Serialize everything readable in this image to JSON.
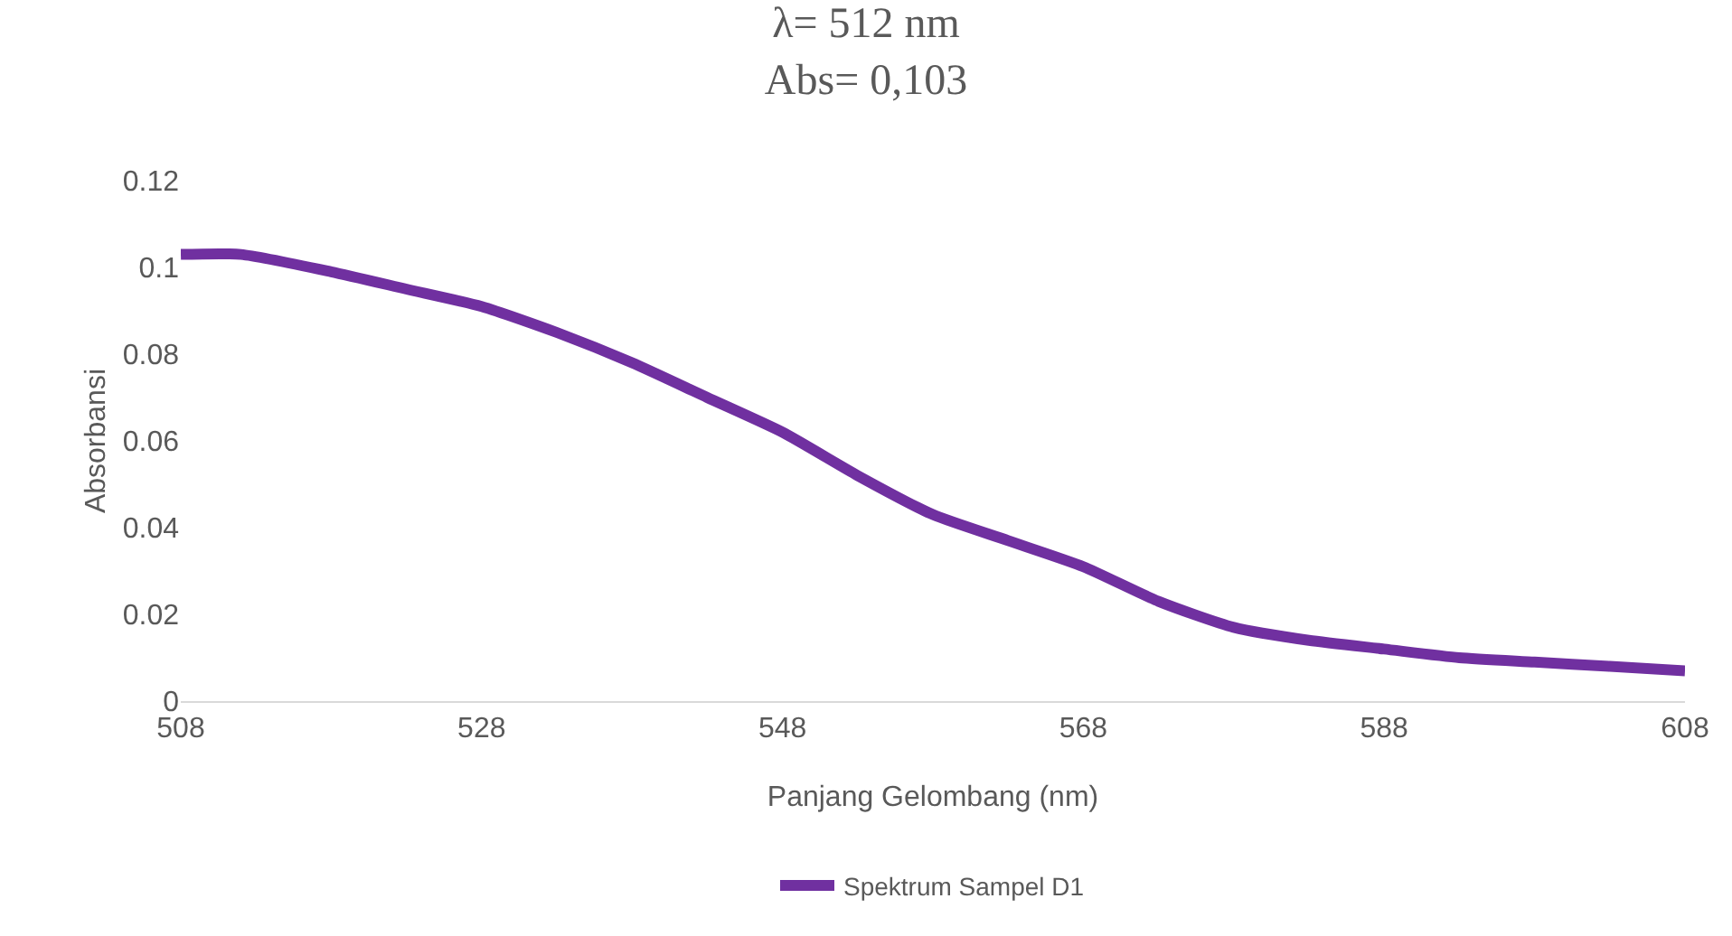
{
  "chart_data": {
    "type": "line",
    "title": "λ= 512 nm\nAbs= 0,103",
    "xlabel": "Panjang Gelombang (nm)",
    "ylabel": "Absorbansi",
    "x": [
      508,
      512,
      518,
      523,
      528,
      533,
      538,
      543,
      548,
      553,
      558,
      563,
      568,
      573,
      578,
      583,
      588,
      593,
      598,
      603,
      608
    ],
    "series": [
      {
        "name": "Spektrum Sampel D1",
        "color": "#7030a0",
        "values": [
          0.103,
          0.103,
          0.099,
          0.095,
          0.091,
          0.085,
          0.078,
          0.07,
          0.062,
          0.052,
          0.043,
          0.037,
          0.031,
          0.023,
          0.017,
          0.014,
          0.012,
          0.01,
          0.009,
          0.008,
          0.007
        ]
      }
    ],
    "xlim": [
      508,
      608
    ],
    "xticks": [
      508,
      528,
      548,
      568,
      588,
      608
    ],
    "ylim": [
      0,
      0.12
    ],
    "yticks": [
      0,
      0.02,
      0.04,
      0.06,
      0.08,
      0.1,
      0.12
    ],
    "grid": false,
    "legend": "bottom",
    "marker": "none",
    "line_style": "solid"
  }
}
